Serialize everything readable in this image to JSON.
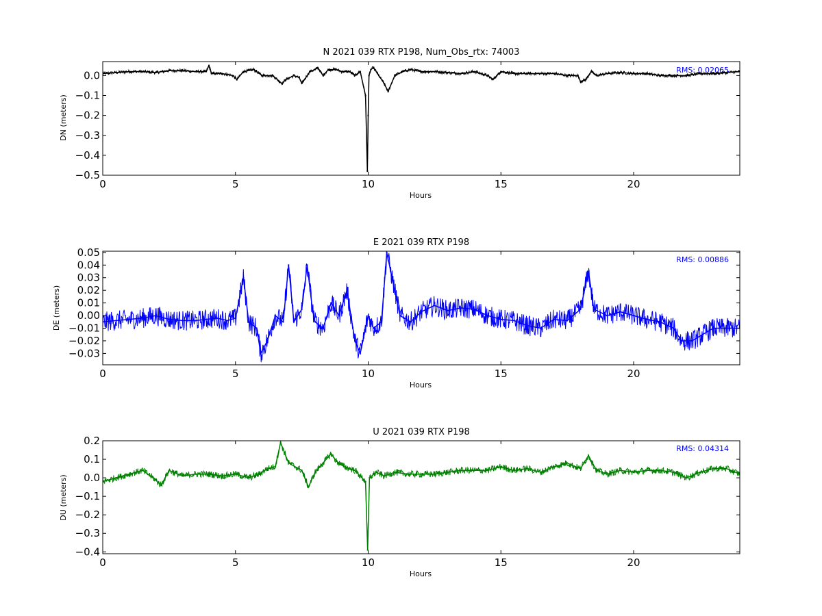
{
  "chart_data": [
    {
      "type": "scatter",
      "title": "N 2021 039 RTX  P198, Num_Obs_rtx: 74003",
      "xlabel": "Hours",
      "ylabel": "DN (meters)",
      "xlim": [
        0,
        24
      ],
      "ylim": [
        -0.5,
        0.07
      ],
      "x_ticks": [
        0,
        5,
        10,
        15,
        20
      ],
      "y_ticks": [
        0.0,
        -0.1,
        -0.2,
        -0.3,
        -0.4,
        -0.5
      ],
      "y_tick_labels": [
        "0.0",
        "−0.1",
        "−0.2",
        "−0.3",
        "−0.4",
        "−0.5"
      ],
      "grid": false,
      "annotation": "RMS:  0.02065",
      "series": [
        {
          "color": "#000000",
          "x": [
            0,
            0.5,
            1,
            1.5,
            2,
            2.5,
            3,
            3.5,
            3.9,
            4.0,
            4.1,
            4.5,
            4.9,
            5.05,
            5.3,
            5.7,
            6.0,
            6.4,
            6.75,
            6.9,
            7.2,
            7.4,
            7.5,
            7.8,
            8.0,
            8.1,
            8.3,
            8.5,
            8.8,
            9.0,
            9.3,
            9.5,
            9.7,
            9.9,
            9.97,
            10.0,
            10.03,
            10.1,
            10.2,
            10.4,
            10.6,
            10.75,
            11.0,
            11.3,
            11.6,
            12.0,
            12.5,
            13.0,
            13.5,
            14.0,
            14.5,
            14.7,
            15.0,
            15.5,
            16.0,
            16.5,
            17.0,
            17.5,
            17.9,
            18.0,
            18.2,
            18.4,
            18.6,
            19.0,
            19.5,
            20.0,
            20.5,
            21.0,
            21.5,
            22.0,
            22.5,
            23.0,
            23.5,
            24.0
          ],
          "y": [
            0.01,
            0.015,
            0.02,
            0.02,
            0.015,
            0.025,
            0.025,
            0.02,
            0.02,
            0.05,
            0.01,
            0.01,
            0.0,
            -0.02,
            0.02,
            0.03,
            0.0,
            0.0,
            -0.04,
            -0.02,
            0.0,
            -0.01,
            -0.04,
            0.02,
            0.03,
            0.04,
            0.0,
            0.03,
            0.03,
            0.02,
            0.02,
            0.0,
            0.02,
            -0.1,
            -0.48,
            -0.2,
            0.0,
            0.03,
            0.04,
            0.0,
            -0.04,
            -0.08,
            0.0,
            0.02,
            0.03,
            0.02,
            0.02,
            0.015,
            0.01,
            0.02,
            0.0,
            -0.02,
            0.02,
            0.01,
            0.01,
            0.01,
            0.01,
            0.0,
            0.0,
            -0.03,
            -0.02,
            0.02,
            0.0,
            0.01,
            0.015,
            0.01,
            0.01,
            0.0,
            0.0,
            0.0,
            0.01,
            0.01,
            0.015,
            0.02
          ],
          "spread": 0.008
        }
      ]
    },
    {
      "type": "scatter",
      "title": "E 2021 039 RTX  P198",
      "xlabel": "Hours",
      "ylabel": "DE (meters)",
      "xlim": [
        0,
        24
      ],
      "ylim": [
        -0.039,
        0.051
      ],
      "x_ticks": [
        0,
        5,
        10,
        15,
        20
      ],
      "y_ticks": [
        0.05,
        0.04,
        0.03,
        0.02,
        0.01,
        0.0,
        -0.01,
        -0.02,
        -0.03
      ],
      "y_tick_labels": [
        "0.05",
        "0.04",
        "0.03",
        "0.02",
        "0.01",
        "0.00",
        "−0.01",
        "−0.02",
        "−0.03"
      ],
      "grid": false,
      "annotation": "RMS:  0.00886",
      "series": [
        {
          "color": "#0000ff",
          "x": [
            0,
            0.5,
            1,
            1.5,
            2,
            2.5,
            3,
            3.5,
            3.9,
            4.3,
            4.7,
            5.0,
            5.3,
            5.5,
            5.8,
            5.95,
            6.2,
            6.5,
            6.8,
            7.0,
            7.2,
            7.5,
            7.7,
            7.9,
            8.0,
            8.3,
            8.6,
            8.9,
            9.2,
            9.5,
            9.7,
            9.8,
            10.0,
            10.2,
            10.5,
            10.7,
            10.9,
            11.2,
            11.6,
            12.0,
            12.5,
            13.0,
            13.5,
            14.0,
            14.5,
            15.0,
            15.5,
            16.0,
            16.5,
            17.0,
            17.5,
            18.0,
            18.3,
            18.5,
            19.0,
            19.5,
            20.0,
            20.5,
            21.0,
            21.5,
            21.8,
            22.2,
            22.6,
            23.0,
            23.5,
            24.0
          ],
          "y": [
            -0.005,
            -0.004,
            -0.003,
            -0.002,
            0.0,
            -0.003,
            -0.004,
            -0.004,
            -0.003,
            -0.002,
            -0.004,
            -0.002,
            0.03,
            -0.005,
            -0.01,
            -0.03,
            -0.02,
            0.0,
            -0.005,
            0.04,
            -0.005,
            0.005,
            0.04,
            0.005,
            -0.005,
            -0.01,
            0.01,
            0.0,
            0.02,
            -0.02,
            -0.03,
            -0.02,
            0.0,
            -0.01,
            -0.005,
            0.05,
            0.03,
            0.0,
            -0.005,
            0.003,
            0.008,
            0.004,
            0.006,
            0.005,
            0.0,
            -0.003,
            -0.004,
            -0.008,
            -0.01,
            -0.003,
            -0.004,
            0.005,
            0.035,
            0.005,
            0.0,
            0.003,
            0.0,
            -0.003,
            -0.005,
            -0.01,
            -0.02,
            -0.02,
            -0.015,
            -0.01,
            -0.01,
            -0.01
          ],
          "spread": 0.008
        }
      ]
    },
    {
      "type": "scatter",
      "title": "U 2021 039 RTX  P198",
      "xlabel": "Hours",
      "ylabel": "DU (meters)",
      "xlim": [
        0,
        24
      ],
      "ylim": [
        -0.41,
        0.2
      ],
      "x_ticks": [
        0,
        5,
        10,
        15,
        20
      ],
      "y_ticks": [
        0.2,
        0.1,
        0.0,
        -0.1,
        -0.2,
        -0.3,
        -0.4
      ],
      "y_tick_labels": [
        "0.2",
        "0.1",
        "0.0",
        "−0.1",
        "−0.2",
        "−0.3",
        "−0.4"
      ],
      "grid": false,
      "annotation": "RMS:  0.04314",
      "series": [
        {
          "color": "#008000",
          "x": [
            0,
            0.5,
            1,
            1.5,
            1.9,
            2.2,
            2.5,
            3,
            3.5,
            4,
            4.5,
            5,
            5.5,
            5.9,
            6.2,
            6.5,
            6.7,
            7.0,
            7.5,
            7.75,
            8.0,
            8.3,
            8.6,
            8.8,
            9.1,
            9.5,
            9.9,
            9.98,
            10.05,
            10.3,
            10.6,
            11.0,
            11.5,
            12.0,
            12.5,
            13.0,
            13.5,
            14.0,
            14.5,
            15.0,
            15.5,
            16.0,
            16.5,
            17.0,
            17.5,
            17.8,
            18.0,
            18.3,
            18.6,
            19.0,
            19.5,
            20.0,
            20.5,
            21.0,
            21.5,
            22.0,
            22.5,
            23.0,
            23.5,
            24.0
          ],
          "y": [
            -0.02,
            0.0,
            0.02,
            0.04,
            0.0,
            -0.04,
            0.04,
            0.01,
            0.02,
            0.02,
            0.01,
            0.02,
            0.0,
            0.02,
            0.05,
            0.06,
            0.19,
            0.08,
            0.04,
            -0.05,
            0.03,
            0.08,
            0.13,
            0.09,
            0.06,
            0.04,
            -0.02,
            -0.39,
            0.0,
            0.03,
            0.01,
            0.03,
            0.02,
            0.02,
            0.02,
            0.03,
            0.04,
            0.04,
            0.04,
            0.06,
            0.04,
            0.05,
            0.03,
            0.06,
            0.08,
            0.06,
            0.05,
            0.12,
            0.04,
            0.02,
            0.04,
            0.03,
            0.04,
            0.04,
            0.03,
            0.0,
            0.03,
            0.05,
            0.05,
            0.02
          ],
          "spread": 0.018
        }
      ]
    }
  ]
}
